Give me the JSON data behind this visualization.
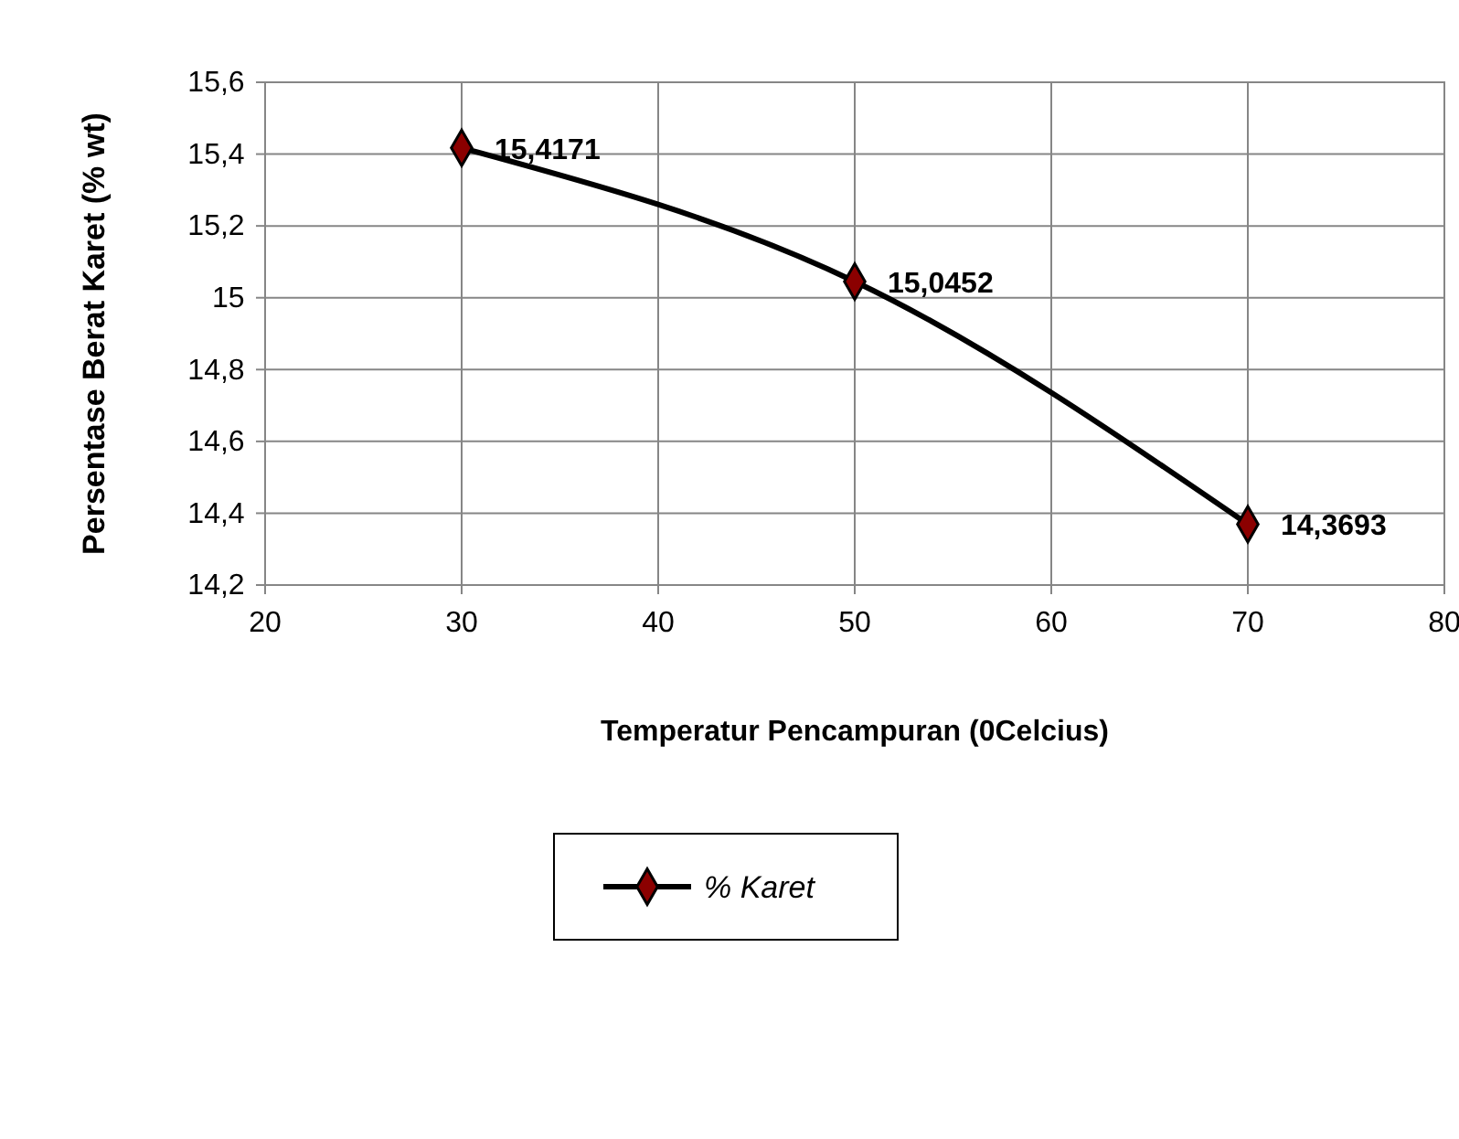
{
  "chart_data": {
    "type": "line",
    "xlabel": "Temperatur Pencampuran (0Celcius)",
    "ylabel": "Persentase Berat Karet (% wt)",
    "x": [
      30,
      50,
      70
    ],
    "series": [
      {
        "name": "% Karet",
        "color": "#000000",
        "values": [
          15.4171,
          15.0452,
          14.3693
        ],
        "value_labels": [
          "15,4171",
          "15,0452",
          "14,3693"
        ]
      }
    ],
    "xlim": [
      20,
      80
    ],
    "xticks": [
      20,
      30,
      40,
      50,
      60,
      70,
      80
    ],
    "ylim": [
      14.2,
      15.6
    ],
    "yticks": [
      {
        "value": 14.2,
        "label": "14,2"
      },
      {
        "value": 14.4,
        "label": "14,4"
      },
      {
        "value": 14.6,
        "label": "14,6"
      },
      {
        "value": 14.8,
        "label": "14,8"
      },
      15,
      {
        "value": 15.2,
        "label": "15,2"
      },
      {
        "value": 15.4,
        "label": "15,4"
      },
      {
        "value": 15.6,
        "label": "15,6"
      }
    ],
    "grid": true,
    "legend": "bottom",
    "marker": "diamond",
    "line_style": "solid"
  }
}
